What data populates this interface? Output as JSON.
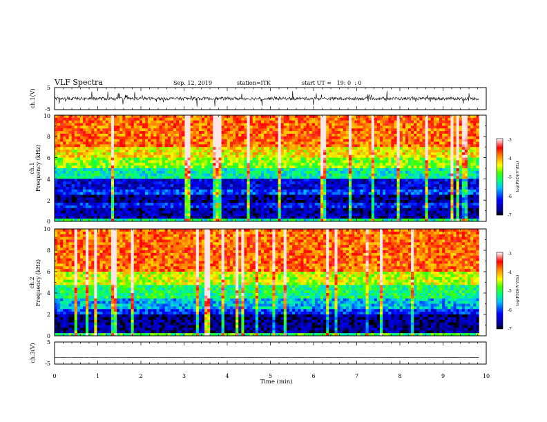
{
  "header": {
    "title": "VLF Spectra",
    "date": "Sep. 12, 2019",
    "station": "station=ITK",
    "start": "start UT =   19: 0  : 0"
  },
  "chart_data": [
    {
      "type": "line",
      "name": "ch1-waveform",
      "ylabel": "ch.1(V)",
      "ylim": [
        -5,
        5
      ],
      "ytick_labels": [
        "5",
        "-5"
      ],
      "xlim": [
        0,
        10
      ],
      "baseline": 0.0,
      "noise_amplitude": 0.7,
      "data_extent": 9.83
    },
    {
      "type": "heatmap",
      "name": "ch1-spectrogram",
      "ylabel": "ch.1\nFrequency (kHz)",
      "ylim": [
        0,
        10
      ],
      "ytick_labels": [
        "0",
        "2",
        "4",
        "6",
        "8",
        "10"
      ],
      "xlim": [
        0,
        10
      ],
      "data_extent": 9.83,
      "colorbar": {
        "label": "log(PSD)(V²/Hz)",
        "range": [
          -7,
          -3
        ],
        "tick_labels": [
          "-3",
          "-4",
          "-5",
          "-6",
          "-7"
        ]
      },
      "bands_khz": [
        {
          "from": 0,
          "to": 0.3,
          "level": -5.2
        },
        {
          "from": 0.3,
          "to": 1.2,
          "level": -6.6
        },
        {
          "from": 1.2,
          "to": 1.8,
          "level": -6.2
        },
        {
          "from": 1.8,
          "to": 2.4,
          "level": -6.7
        },
        {
          "from": 2.4,
          "to": 3.0,
          "level": -6.0
        },
        {
          "from": 3.0,
          "to": 4.0,
          "level": -6.4
        },
        {
          "from": 4.0,
          "to": 5.0,
          "level": -5.3
        },
        {
          "from": 5.0,
          "to": 6.0,
          "level": -4.7
        },
        {
          "from": 6.0,
          "to": 7.0,
          "level": -4.3
        },
        {
          "from": 7.0,
          "to": 10.0,
          "level": -3.8
        }
      ]
    },
    {
      "type": "heatmap",
      "name": "ch2-spectrogram",
      "ylabel": "ch.2\nFrequency (kHz)",
      "ylim": [
        0,
        10
      ],
      "ytick_labels": [
        "0",
        "2",
        "4",
        "6",
        "8",
        "10"
      ],
      "xlim": [
        0,
        10
      ],
      "data_extent": 9.83,
      "colorbar": {
        "label": "log(PSD)(V²/Hz)",
        "range": [
          -7,
          -3
        ],
        "tick_labels": [
          "-3",
          "-4",
          "-5",
          "-6",
          "-7"
        ]
      },
      "bands_khz": [
        {
          "from": 0,
          "to": 0.3,
          "level": -5.0
        },
        {
          "from": 0.3,
          "to": 2.0,
          "level": -6.7
        },
        {
          "from": 2.0,
          "to": 2.6,
          "level": -6.1
        },
        {
          "from": 2.6,
          "to": 3.5,
          "level": -5.6
        },
        {
          "from": 3.5,
          "to": 4.8,
          "level": -5.1
        },
        {
          "from": 4.8,
          "to": 6.0,
          "level": -4.5
        },
        {
          "from": 6.0,
          "to": 10.0,
          "level": -3.8
        }
      ]
    },
    {
      "type": "line",
      "name": "ch3-waveform",
      "ylabel": "ch.3(V)",
      "ylim": [
        -5,
        5
      ],
      "ytick_labels": [
        "5",
        "-5"
      ],
      "xlim": [
        0,
        10
      ],
      "baseline": -2.0,
      "noise_amplitude": 0.05,
      "data_extent": 9.83
    }
  ],
  "xaxis": {
    "label": "Time (min)",
    "tick_labels": [
      "0",
      "1",
      "2",
      "3",
      "4",
      "5",
      "6",
      "7",
      "8",
      "9",
      "10"
    ]
  }
}
